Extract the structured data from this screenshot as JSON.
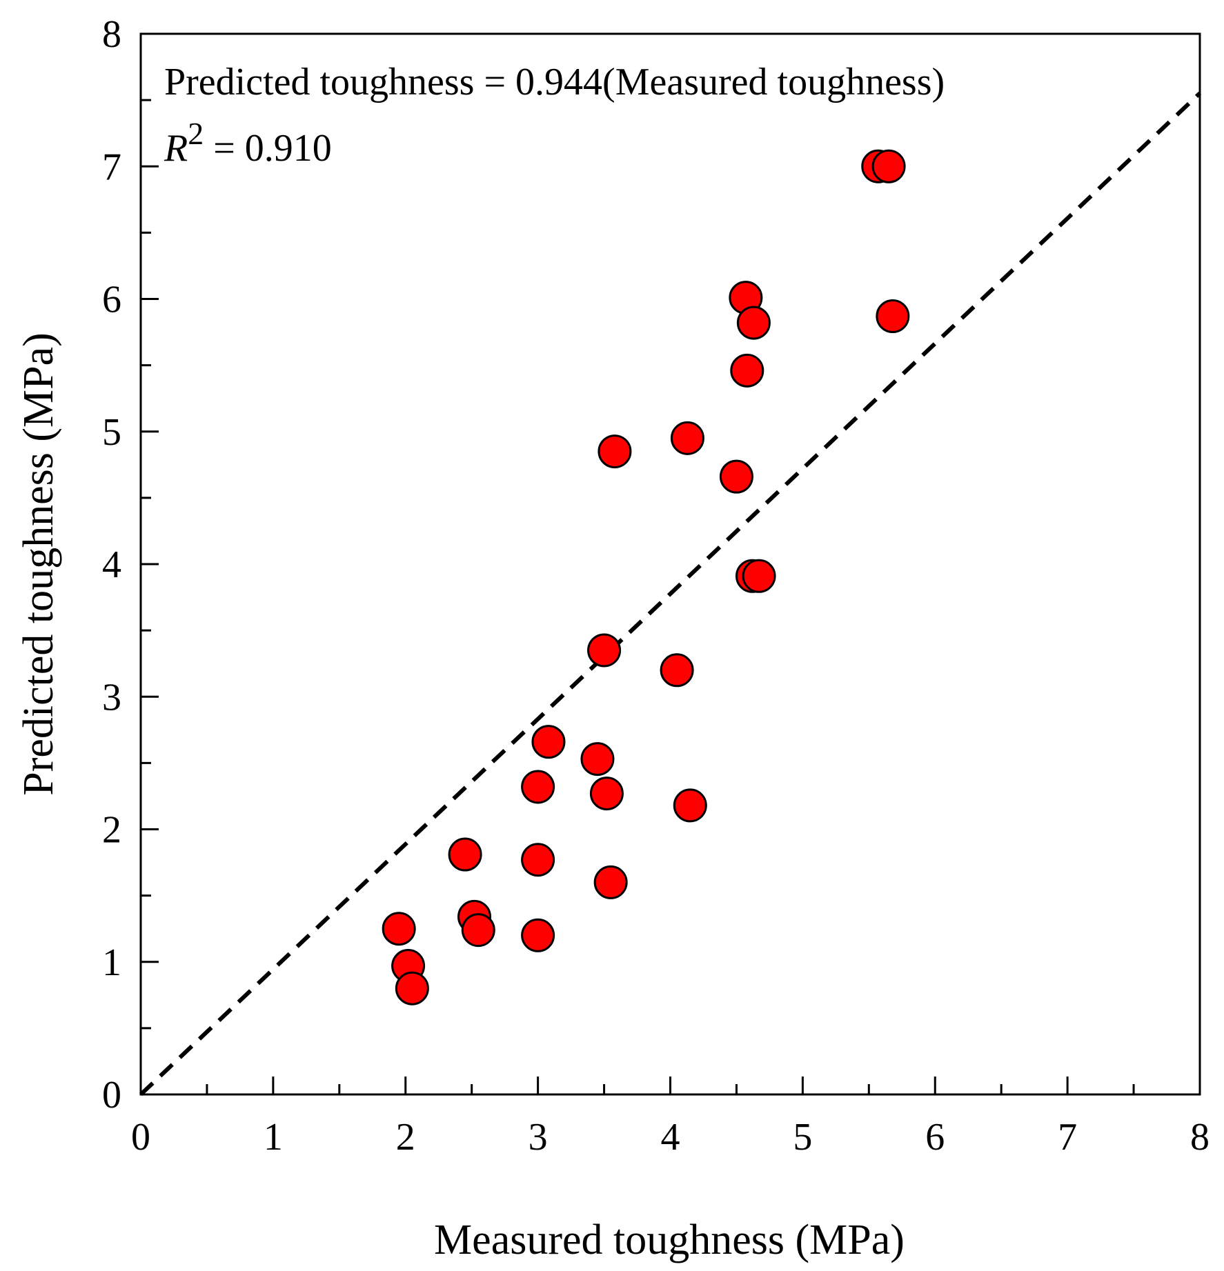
{
  "chart_data": {
    "type": "scatter",
    "title": "",
    "xlabel": "Measured toughness (MPa)",
    "ylabel": "Predicted toughness (MPa)",
    "xlim": [
      0,
      8
    ],
    "ylim": [
      0,
      8
    ],
    "xticks": [
      "0",
      "1",
      "2",
      "3",
      "4",
      "5",
      "6",
      "7",
      "8"
    ],
    "yticks": [
      "0",
      "1",
      "2",
      "3",
      "4",
      "5",
      "6",
      "7",
      "8"
    ],
    "grid": false,
    "annotation": {
      "equation": "Predicted toughness = 0.944(Measured toughness)",
      "r2_symbol": "R",
      "r2_exponent": "2",
      "r2_value": " = 0.910"
    },
    "fit_line": {
      "slope": 0.944,
      "intercept": 0,
      "style": "dashed",
      "color": "#000000"
    },
    "marker_color": "#ff0000",
    "marker_edge": "#000000",
    "points": [
      {
        "x": 1.95,
        "y": 1.25
      },
      {
        "x": 2.02,
        "y": 0.97
      },
      {
        "x": 2.05,
        "y": 0.8
      },
      {
        "x": 2.45,
        "y": 1.81
      },
      {
        "x": 2.52,
        "y": 1.34
      },
      {
        "x": 2.55,
        "y": 1.24
      },
      {
        "x": 3.0,
        "y": 2.32
      },
      {
        "x": 3.0,
        "y": 1.77
      },
      {
        "x": 3.0,
        "y": 1.2
      },
      {
        "x": 3.08,
        "y": 2.66
      },
      {
        "x": 3.45,
        "y": 2.53
      },
      {
        "x": 3.52,
        "y": 2.27
      },
      {
        "x": 3.55,
        "y": 1.6
      },
      {
        "x": 3.5,
        "y": 3.35
      },
      {
        "x": 3.58,
        "y": 4.85
      },
      {
        "x": 4.05,
        "y": 3.2
      },
      {
        "x": 4.15,
        "y": 2.18
      },
      {
        "x": 4.13,
        "y": 4.95
      },
      {
        "x": 4.5,
        "y": 4.66
      },
      {
        "x": 4.58,
        "y": 5.46
      },
      {
        "x": 4.57,
        "y": 6.01
      },
      {
        "x": 4.63,
        "y": 5.82
      },
      {
        "x": 4.62,
        "y": 3.91
      },
      {
        "x": 4.67,
        "y": 3.91
      },
      {
        "x": 5.57,
        "y": 7.0
      },
      {
        "x": 5.65,
        "y": 7.0
      },
      {
        "x": 5.68,
        "y": 5.87
      }
    ]
  }
}
